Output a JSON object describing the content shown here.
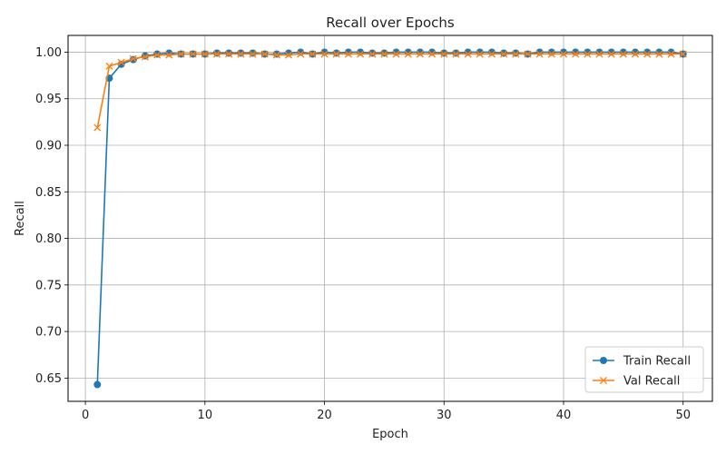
{
  "chart_data": {
    "type": "line",
    "title": "Recall over Epochs",
    "xlabel": "Epoch",
    "ylabel": "Recall",
    "xlim": [
      -1.45,
      52.45
    ],
    "ylim": [
      0.625,
      1.018
    ],
    "xticks": [
      0,
      10,
      20,
      30,
      40,
      50
    ],
    "yticks": [
      0.65,
      0.7,
      0.75,
      0.8,
      0.85,
      0.9,
      0.95,
      1.0
    ],
    "ytick_labels": [
      "0.65",
      "0.70",
      "0.75",
      "0.80",
      "0.85",
      "0.90",
      "0.95",
      "1.00"
    ],
    "grid": true,
    "legend_position": "lower-right",
    "x": [
      1,
      2,
      3,
      4,
      5,
      6,
      7,
      8,
      9,
      10,
      11,
      12,
      13,
      14,
      15,
      16,
      17,
      18,
      19,
      20,
      21,
      22,
      23,
      24,
      25,
      26,
      27,
      28,
      29,
      30,
      31,
      32,
      33,
      34,
      35,
      36,
      37,
      38,
      39,
      40,
      41,
      42,
      43,
      44,
      45,
      46,
      47,
      48,
      49,
      50
    ],
    "series": [
      {
        "name": "Train Recall",
        "color": "#1f77b4",
        "marker": "circle",
        "values": [
          0.643,
          0.972,
          0.987,
          0.992,
          0.996,
          0.998,
          0.999,
          0.998,
          0.998,
          0.998,
          0.999,
          0.999,
          0.999,
          0.999,
          0.998,
          0.998,
          0.999,
          1.0,
          0.998,
          1.0,
          0.999,
          1.0,
          1.0,
          0.999,
          0.999,
          1.0,
          1.0,
          1.0,
          1.0,
          0.999,
          0.999,
          1.0,
          1.0,
          1.0,
          0.999,
          0.999,
          0.998,
          1.0,
          1.0,
          1.0,
          1.0,
          1.0,
          1.0,
          1.0,
          1.0,
          1.0,
          1.0,
          1.0,
          1.0,
          0.998
        ]
      },
      {
        "name": "Val Recall",
        "color": "#ff7f0e",
        "marker": "x",
        "values": [
          0.919,
          0.985,
          0.989,
          0.993,
          0.995,
          0.997,
          0.997,
          0.998,
          0.998,
          0.998,
          0.998,
          0.998,
          0.998,
          0.998,
          0.998,
          0.997,
          0.997,
          0.998,
          0.998,
          0.998,
          0.998,
          0.998,
          0.998,
          0.998,
          0.998,
          0.998,
          0.998,
          0.998,
          0.998,
          0.998,
          0.998,
          0.998,
          0.998,
          0.998,
          0.998,
          0.998,
          0.998,
          0.998,
          0.998,
          0.998,
          0.998,
          0.998,
          0.998,
          0.998,
          0.998,
          0.998,
          0.998,
          0.998,
          0.998,
          0.998
        ]
      }
    ]
  }
}
